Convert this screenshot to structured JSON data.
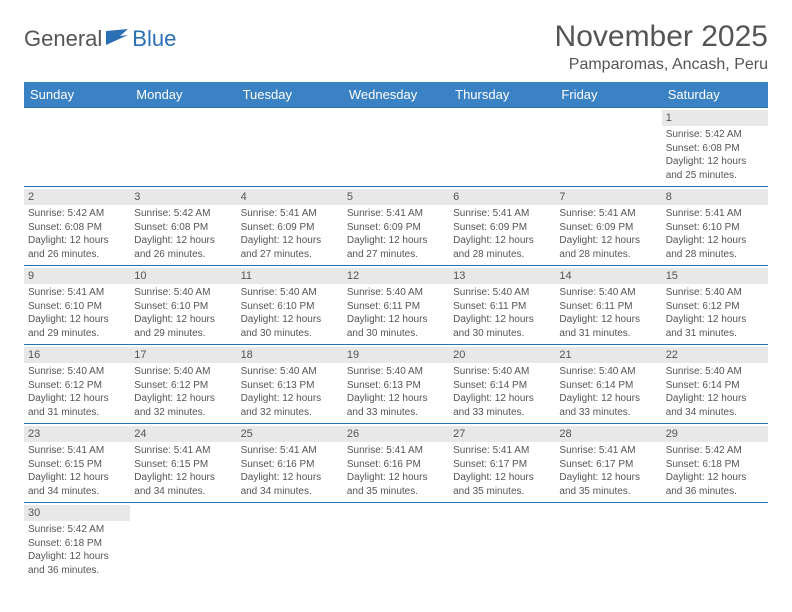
{
  "brand": {
    "text_general": "General",
    "text_blue": "Blue",
    "accent_color": "#2b6fb5",
    "header_bg": "#3b82c4"
  },
  "title": "November 2025",
  "location": "Pamparomas, Ancash, Peru",
  "weekdays": [
    "Sunday",
    "Monday",
    "Tuesday",
    "Wednesday",
    "Thursday",
    "Friday",
    "Saturday"
  ],
  "days": [
    {
      "n": 1,
      "sunrise": "5:42 AM",
      "sunset": "6:08 PM",
      "daylight": "12 hours and 25 minutes."
    },
    {
      "n": 2,
      "sunrise": "5:42 AM",
      "sunset": "6:08 PM",
      "daylight": "12 hours and 26 minutes."
    },
    {
      "n": 3,
      "sunrise": "5:42 AM",
      "sunset": "6:08 PM",
      "daylight": "12 hours and 26 minutes."
    },
    {
      "n": 4,
      "sunrise": "5:41 AM",
      "sunset": "6:09 PM",
      "daylight": "12 hours and 27 minutes."
    },
    {
      "n": 5,
      "sunrise": "5:41 AM",
      "sunset": "6:09 PM",
      "daylight": "12 hours and 27 minutes."
    },
    {
      "n": 6,
      "sunrise": "5:41 AM",
      "sunset": "6:09 PM",
      "daylight": "12 hours and 28 minutes."
    },
    {
      "n": 7,
      "sunrise": "5:41 AM",
      "sunset": "6:09 PM",
      "daylight": "12 hours and 28 minutes."
    },
    {
      "n": 8,
      "sunrise": "5:41 AM",
      "sunset": "6:10 PM",
      "daylight": "12 hours and 28 minutes."
    },
    {
      "n": 9,
      "sunrise": "5:41 AM",
      "sunset": "6:10 PM",
      "daylight": "12 hours and 29 minutes."
    },
    {
      "n": 10,
      "sunrise": "5:40 AM",
      "sunset": "6:10 PM",
      "daylight": "12 hours and 29 minutes."
    },
    {
      "n": 11,
      "sunrise": "5:40 AM",
      "sunset": "6:10 PM",
      "daylight": "12 hours and 30 minutes."
    },
    {
      "n": 12,
      "sunrise": "5:40 AM",
      "sunset": "6:11 PM",
      "daylight": "12 hours and 30 minutes."
    },
    {
      "n": 13,
      "sunrise": "5:40 AM",
      "sunset": "6:11 PM",
      "daylight": "12 hours and 30 minutes."
    },
    {
      "n": 14,
      "sunrise": "5:40 AM",
      "sunset": "6:11 PM",
      "daylight": "12 hours and 31 minutes."
    },
    {
      "n": 15,
      "sunrise": "5:40 AM",
      "sunset": "6:12 PM",
      "daylight": "12 hours and 31 minutes."
    },
    {
      "n": 16,
      "sunrise": "5:40 AM",
      "sunset": "6:12 PM",
      "daylight": "12 hours and 31 minutes."
    },
    {
      "n": 17,
      "sunrise": "5:40 AM",
      "sunset": "6:12 PM",
      "daylight": "12 hours and 32 minutes."
    },
    {
      "n": 18,
      "sunrise": "5:40 AM",
      "sunset": "6:13 PM",
      "daylight": "12 hours and 32 minutes."
    },
    {
      "n": 19,
      "sunrise": "5:40 AM",
      "sunset": "6:13 PM",
      "daylight": "12 hours and 33 minutes."
    },
    {
      "n": 20,
      "sunrise": "5:40 AM",
      "sunset": "6:14 PM",
      "daylight": "12 hours and 33 minutes."
    },
    {
      "n": 21,
      "sunrise": "5:40 AM",
      "sunset": "6:14 PM",
      "daylight": "12 hours and 33 minutes."
    },
    {
      "n": 22,
      "sunrise": "5:40 AM",
      "sunset": "6:14 PM",
      "daylight": "12 hours and 34 minutes."
    },
    {
      "n": 23,
      "sunrise": "5:41 AM",
      "sunset": "6:15 PM",
      "daylight": "12 hours and 34 minutes."
    },
    {
      "n": 24,
      "sunrise": "5:41 AM",
      "sunset": "6:15 PM",
      "daylight": "12 hours and 34 minutes."
    },
    {
      "n": 25,
      "sunrise": "5:41 AM",
      "sunset": "6:16 PM",
      "daylight": "12 hours and 34 minutes."
    },
    {
      "n": 26,
      "sunrise": "5:41 AM",
      "sunset": "6:16 PM",
      "daylight": "12 hours and 35 minutes."
    },
    {
      "n": 27,
      "sunrise": "5:41 AM",
      "sunset": "6:17 PM",
      "daylight": "12 hours and 35 minutes."
    },
    {
      "n": 28,
      "sunrise": "5:41 AM",
      "sunset": "6:17 PM",
      "daylight": "12 hours and 35 minutes."
    },
    {
      "n": 29,
      "sunrise": "5:42 AM",
      "sunset": "6:18 PM",
      "daylight": "12 hours and 36 minutes."
    },
    {
      "n": 30,
      "sunrise": "5:42 AM",
      "sunset": "6:18 PM",
      "daylight": "12 hours and 36 minutes."
    }
  ],
  "labels": {
    "sunrise": "Sunrise:",
    "sunset": "Sunset:",
    "daylight": "Daylight:"
  },
  "layout": {
    "first_weekday_index": 6,
    "rows": 6,
    "cols": 7
  }
}
